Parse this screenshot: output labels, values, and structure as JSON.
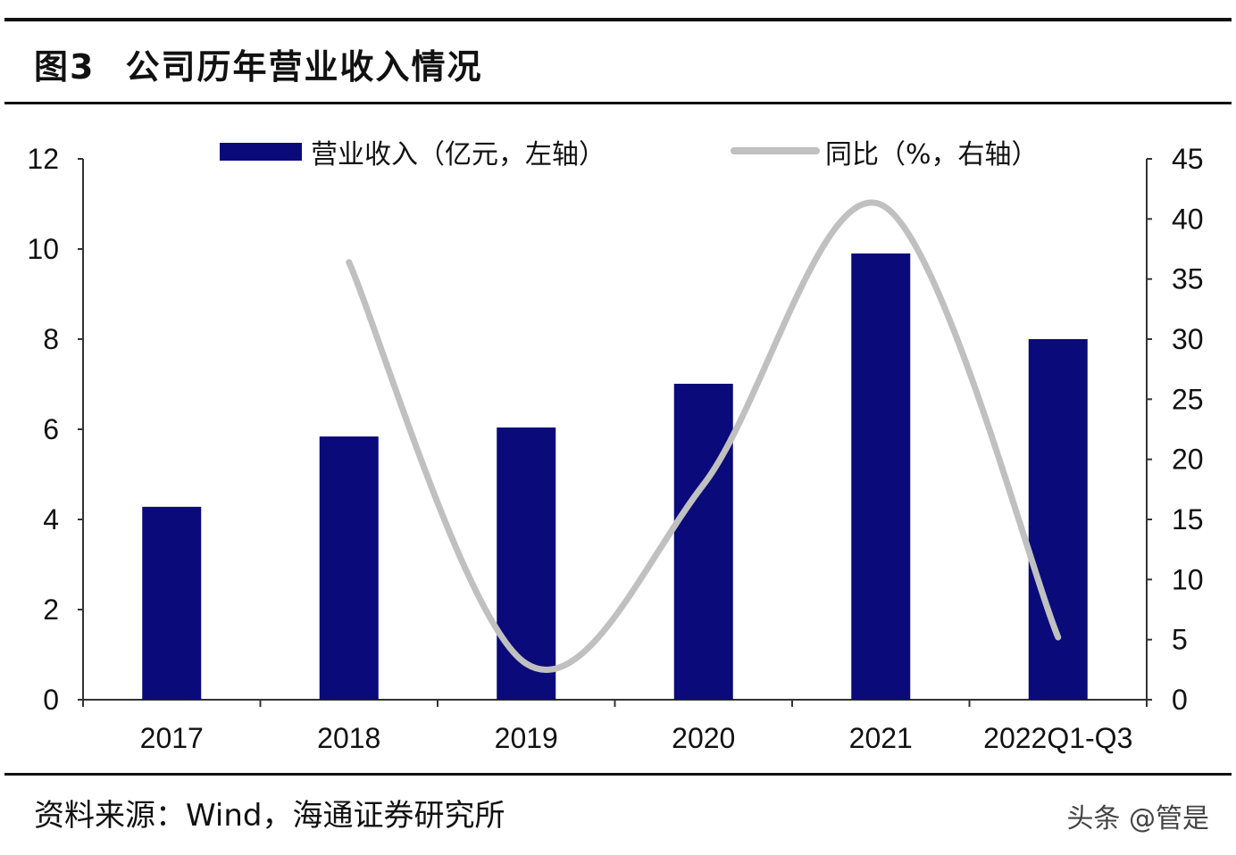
{
  "header": {
    "figure_no": "图3",
    "title": "公司历年营业收入情况"
  },
  "footer": {
    "source": "资料来源：Wind，海通证券研究所",
    "watermark": "头条 @管是"
  },
  "chart_data": {
    "type": "bar+line",
    "title": "公司历年营业收入情况",
    "categories": [
      "2017",
      "2018",
      "2019",
      "2020",
      "2021",
      "2022Q1-Q3"
    ],
    "series": [
      {
        "name": "营业收入（亿元，左轴）",
        "type": "bar",
        "axis": "left",
        "color": "#0a0a7a",
        "values": [
          4.28,
          5.84,
          6.04,
          7.01,
          9.9,
          8.0
        ]
      },
      {
        "name": "同比（%，右轴）",
        "type": "line",
        "axis": "right",
        "color": "#c0c0c0",
        "values": [
          null,
          36.4,
          3.0,
          17.9,
          41.2,
          5.2
        ]
      }
    ],
    "left_axis": {
      "ylim": [
        0,
        12
      ],
      "ticks": [
        "0",
        "2",
        "4",
        "6",
        "8",
        "10",
        "12"
      ]
    },
    "right_axis": {
      "ylim": [
        0,
        45
      ],
      "ticks": [
        "0",
        "5",
        "10",
        "15",
        "20",
        "25",
        "30",
        "35",
        "40",
        "45"
      ]
    },
    "grid": false,
    "legend": "top"
  }
}
